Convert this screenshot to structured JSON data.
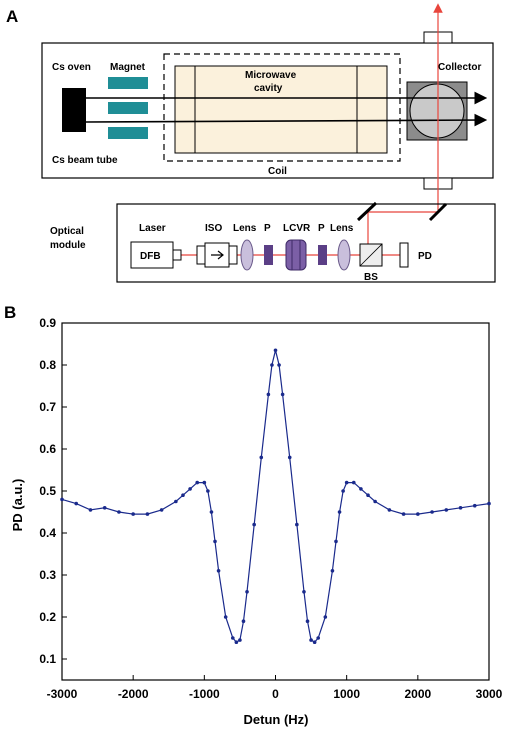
{
  "panel_a": {
    "letter": "A",
    "labels": {
      "cs_oven": "Cs oven",
      "magnet": "Magnet",
      "microwave_cavity_line1": "Microwave",
      "microwave_cavity_line2": "cavity",
      "collector": "Collector",
      "cs_beam_tube": "Cs beam tube",
      "coil": "Coil",
      "optical_module_line1": "Optical",
      "optical_module_line2": "module",
      "laser": "Laser",
      "dfb": "DFB",
      "iso": "ISO",
      "lens1": "Lens",
      "p1": "P",
      "lcvr": "LCVR",
      "p2": "P",
      "lens2": "Lens",
      "bs": "BS",
      "pd": "PD"
    },
    "colors": {
      "magnet": "#1f8e96",
      "cavity_fill": "#fbf1dc",
      "laser_beam": "#e8453c",
      "lens_fill": "#c9bfdc",
      "lcvr_fill": "#7b5fa6",
      "polarizer_fill": "#5b3f86"
    }
  },
  "panel_b": {
    "letter": "B",
    "ylabel": "PD (a.u.)",
    "xlabel": "Detun (Hz)"
  },
  "chart_data": {
    "type": "scatter",
    "x_ticks": [
      -3000,
      -2000,
      -1000,
      0,
      1000,
      2000,
      3000
    ],
    "y_ticks": [
      0.1,
      0.2,
      0.3,
      0.4,
      0.5,
      0.6,
      0.7,
      0.8,
      0.9
    ],
    "xlim": [
      -3000,
      3000
    ],
    "ylim": [
      0.05,
      0.9
    ],
    "grid": false,
    "series_color": "#1a2a8c",
    "series": [
      {
        "x": [
          -3000,
          -2800,
          -2600,
          -2400,
          -2200,
          -2000,
          -1800,
          -1600,
          -1400,
          -1300,
          -1200,
          -1100,
          -1000,
          -950,
          -900,
          -850,
          -800,
          -700,
          -600,
          -550,
          -500,
          -450,
          -400,
          -300,
          -200,
          -100,
          -50,
          0,
          50,
          100,
          200,
          300,
          400,
          450,
          500,
          550,
          600,
          700,
          800,
          850,
          900,
          950,
          1000,
          1100,
          1200,
          1300,
          1400,
          1600,
          1800,
          2000,
          2200,
          2400,
          2600,
          2800,
          3000
        ],
        "y": [
          0.48,
          0.47,
          0.455,
          0.46,
          0.45,
          0.445,
          0.445,
          0.455,
          0.475,
          0.49,
          0.505,
          0.52,
          0.52,
          0.5,
          0.45,
          0.38,
          0.31,
          0.2,
          0.15,
          0.14,
          0.145,
          0.19,
          0.26,
          0.42,
          0.58,
          0.73,
          0.8,
          0.835,
          0.8,
          0.73,
          0.58,
          0.42,
          0.26,
          0.19,
          0.145,
          0.14,
          0.15,
          0.2,
          0.31,
          0.38,
          0.45,
          0.5,
          0.52,
          0.52,
          0.505,
          0.49,
          0.475,
          0.455,
          0.445,
          0.445,
          0.45,
          0.455,
          0.46,
          0.465,
          0.47
        ]
      }
    ]
  }
}
